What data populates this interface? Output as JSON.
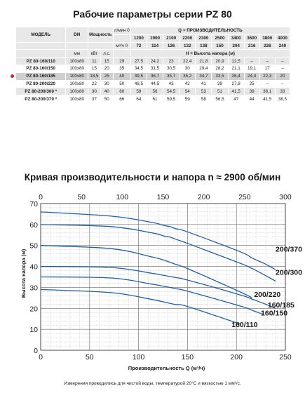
{
  "table": {
    "title": "Рабочие параметры серии PZ 80",
    "headers": {
      "model": "МОДЕЛЬ",
      "dn": "DN",
      "power": "Мощность",
      "q_label": "Q = ПРОИЗВОДИТЕЛЬНОСТЬ",
      "h_label": "H = Высота напора (м)",
      "flow_unit_lmin": "л/мин 0",
      "flow_unit_m3h": "м³/ч 0",
      "dn_unit": "мм",
      "kw_unit": "кВт",
      "hp_unit": "л.с.",
      "lmin_values": [
        "1200",
        "1900",
        "2100",
        "2200",
        "2300",
        "2500",
        "3400",
        "3600",
        "3800",
        "4000"
      ],
      "m3h_values": [
        "72",
        "114",
        "126",
        "132",
        "138",
        "150",
        "204",
        "216",
        "228",
        "240"
      ]
    },
    "rows": [
      {
        "model": "PZ 80-160/110",
        "dn": "100x80",
        "kw": "11",
        "hp": "15",
        "h0": "29",
        "h": [
          "27,5",
          "24,2",
          "23",
          "22,4",
          "21,8",
          "20,9",
          "12,5",
          "–",
          "–",
          "–"
        ]
      },
      {
        "model": "PZ 80-160/150",
        "dn": "100x80",
        "kw": "15",
        "hp": "20",
        "h0": "35",
        "h": [
          "34,5",
          "31,5",
          "30,5",
          "30",
          "29,4",
          "28,2",
          "21,1",
          "19,1",
          "17",
          "–"
        ]
      },
      {
        "model": "PZ 80-160/185",
        "dn": "100x80",
        "kw": "18,5",
        "hp": "25",
        "h0": "40",
        "h": [
          "39,5",
          "36,7",
          "35,7",
          "35,2",
          "34,7",
          "33,5",
          "26,4",
          "24,4",
          "22,3",
          "20"
        ]
      },
      {
        "model": "PZ 80-200/220",
        "dn": "100x80",
        "kw": "22",
        "hp": "30",
        "h0": "50",
        "h": [
          "48,5",
          "44,5",
          "43",
          "42",
          "41",
          "39",
          "27,8",
          "25",
          "–",
          "–"
        ]
      },
      {
        "model": "PZ 80-200/300 *",
        "dn": "100x80",
        "kw": "30",
        "hp": "40",
        "h0": "60",
        "h": [
          "59",
          "56",
          "54,5",
          "54",
          "53",
          "51",
          "41,5",
          "39",
          "36,1",
          "33"
        ]
      },
      {
        "model": "PZ 80-200/370 *",
        "dn": "100x80",
        "kw": "37",
        "hp": "50",
        "h0": "66",
        "h": [
          "64",
          "61",
          "59,5",
          "59",
          "58",
          "56,5",
          "47",
          "44",
          "41,5",
          "38,5"
        ]
      }
    ]
  },
  "chart_title": "Кривая производительности и напора n ≈ 2900 об/мин",
  "note": "Измерения проводились для чистой воды, температурой 20°C и вязкостью 1 мм²/с.",
  "colors": {
    "curve": "#1f5fa8",
    "marker": "#e01b24",
    "grid": "#9a9a9a"
  },
  "chart_data": {
    "type": "line",
    "title": "Кривая производительности и напора n ≈ 2900 об/мин",
    "xlabel": "Производительность Q (м³/ч)",
    "ylabel": "Высота напора (м)",
    "xlim": [
      0,
      250
    ],
    "ylim": [
      0,
      70
    ],
    "top_axis_lim": [
      0,
      300
    ],
    "x_ticks": [
      0,
      50,
      100,
      150,
      200,
      250
    ],
    "y_ticks": [
      0,
      10,
      20,
      30,
      40,
      50,
      60,
      70
    ],
    "top_ticks": [
      0,
      50,
      100,
      150,
      200,
      250,
      300
    ],
    "grid": true,
    "series": [
      {
        "name": "160/110",
        "x": [
          0,
          72,
          114,
          126,
          132,
          138,
          150,
          204
        ],
        "y": [
          29,
          27.5,
          24.2,
          23,
          22.4,
          21.8,
          20.9,
          12.5
        ]
      },
      {
        "name": "160/150",
        "x": [
          0,
          72,
          114,
          126,
          132,
          138,
          150,
          204,
          216,
          228
        ],
        "y": [
          35,
          34.5,
          31.5,
          30.5,
          30,
          29.4,
          28.2,
          21.1,
          19.1,
          17
        ]
      },
      {
        "name": "160/185",
        "x": [
          0,
          72,
          114,
          126,
          132,
          138,
          150,
          204,
          216,
          228,
          240
        ],
        "y": [
          40,
          39.5,
          36.7,
          35.7,
          35.2,
          34.7,
          33.5,
          26.4,
          24.4,
          22.3,
          20
        ]
      },
      {
        "name": "200/220",
        "x": [
          0,
          72,
          114,
          126,
          132,
          138,
          150,
          204,
          216
        ],
        "y": [
          50,
          48.5,
          44.5,
          43,
          42,
          41,
          39,
          27.8,
          25
        ]
      },
      {
        "name": "200/300",
        "x": [
          0,
          72,
          114,
          126,
          132,
          138,
          150,
          204,
          216,
          228,
          240
        ],
        "y": [
          60,
          59,
          56,
          54.5,
          54,
          53,
          51,
          41.5,
          39,
          36.1,
          33
        ]
      },
      {
        "name": "200/370",
        "x": [
          0,
          72,
          114,
          126,
          132,
          138,
          150,
          204,
          216,
          228,
          240
        ],
        "y": [
          66,
          64,
          61,
          59.5,
          59,
          58,
          56.5,
          47,
          44,
          41.5,
          38.5
        ]
      }
    ]
  }
}
